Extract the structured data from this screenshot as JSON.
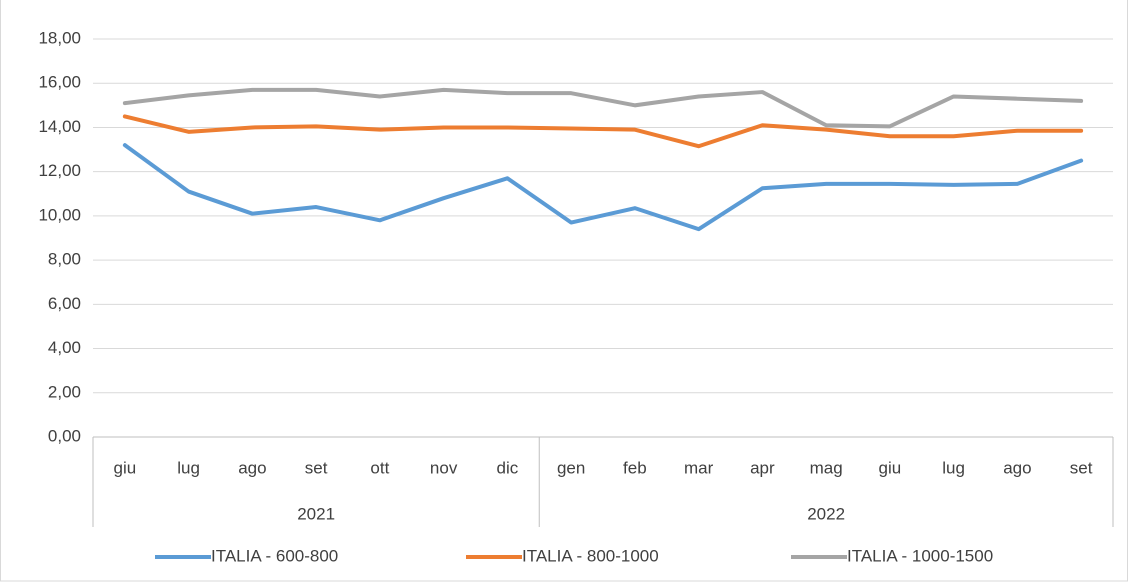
{
  "chart_data": {
    "type": "line",
    "categories": [
      "giu",
      "lug",
      "ago",
      "set",
      "ott",
      "nov",
      "dic",
      "gen",
      "feb",
      "mar",
      "apr",
      "mag",
      "giu",
      "lug",
      "ago",
      "set"
    ],
    "groups": [
      {
        "label": "2021",
        "count": 7
      },
      {
        "label": "2022",
        "count": 9
      }
    ],
    "series": [
      {
        "name": "ITALIA - 600-800",
        "color": "#5b9bd5",
        "values": [
          13.2,
          11.1,
          10.1,
          10.4,
          9.8,
          10.8,
          11.7,
          9.7,
          10.35,
          9.4,
          11.25,
          11.45,
          11.45,
          11.4,
          11.45,
          12.5
        ]
      },
      {
        "name": "ITALIA - 800-1000",
        "color": "#ed7d31",
        "values": [
          14.5,
          13.8,
          14.0,
          14.05,
          13.9,
          14.0,
          14.0,
          13.95,
          13.9,
          13.15,
          14.1,
          13.9,
          13.6,
          13.6,
          13.85,
          13.85
        ]
      },
      {
        "name": "ITALIA - 1000-1500",
        "color": "#a5a5a5",
        "values": [
          15.1,
          15.45,
          15.7,
          15.7,
          15.4,
          15.7,
          15.55,
          15.55,
          15.0,
          15.4,
          15.6,
          14.1,
          14.05,
          15.4,
          15.3,
          15.2
        ]
      }
    ],
    "ylim": [
      0,
      18
    ],
    "yticks": [
      {
        "value": 0,
        "label": "0,00"
      },
      {
        "value": 2,
        "label": "2,00"
      },
      {
        "value": 4,
        "label": "4,00"
      },
      {
        "value": 6,
        "label": "6,00"
      },
      {
        "value": 8,
        "label": "8,00"
      },
      {
        "value": 10,
        "label": "10,00"
      },
      {
        "value": 12,
        "label": "12,00"
      },
      {
        "value": 14,
        "label": "14,00"
      },
      {
        "value": 16,
        "label": "16,00"
      },
      {
        "value": 18,
        "label": "18,00"
      }
    ],
    "grid": true,
    "legend": "bottom"
  }
}
